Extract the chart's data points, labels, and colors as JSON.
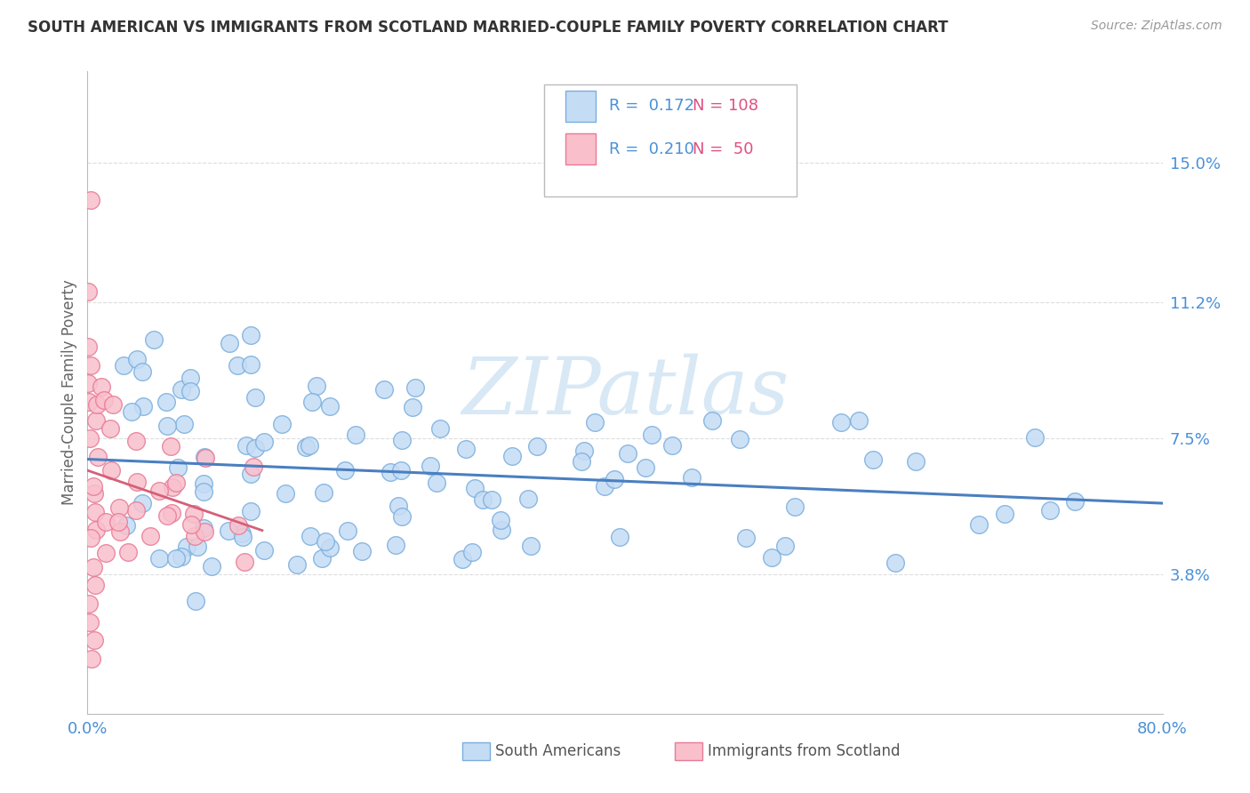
{
  "title": "SOUTH AMERICAN VS IMMIGRANTS FROM SCOTLAND MARRIED-COUPLE FAMILY POVERTY CORRELATION CHART",
  "source": "Source: ZipAtlas.com",
  "ylabel": "Married-Couple Family Poverty",
  "xmin": 0.0,
  "xmax": 0.8,
  "ymin": 0.0,
  "ymax": 0.175,
  "ytick_vals": [
    0.038,
    0.075,
    0.112,
    0.15
  ],
  "ytick_labels": [
    "3.8%",
    "7.5%",
    "11.2%",
    "15.0%"
  ],
  "xtick_vals": [
    0.0,
    0.1,
    0.2,
    0.3,
    0.4,
    0.5,
    0.6,
    0.7,
    0.8
  ],
  "xtick_labels": [
    "0.0%",
    "",
    "",
    "",
    "",
    "",
    "",
    "",
    "80.0%"
  ],
  "watermark": "ZIPatlas",
  "legend_blue_r": "0.172",
  "legend_blue_n": "108",
  "legend_pink_r": "0.210",
  "legend_pink_n": "50",
  "blue_fill": "#c5dcf5",
  "blue_edge": "#7aaedd",
  "pink_fill": "#f9c0cc",
  "pink_edge": "#e87a96",
  "blue_line_color": "#4a7fc1",
  "pink_line_color": "#d4607a",
  "legend_r_color": "#4a90d9",
  "legend_n_color": "#e05080",
  "background_color": "#ffffff",
  "grid_color": "#dddddd",
  "watermark_color": "#d8e8f5"
}
